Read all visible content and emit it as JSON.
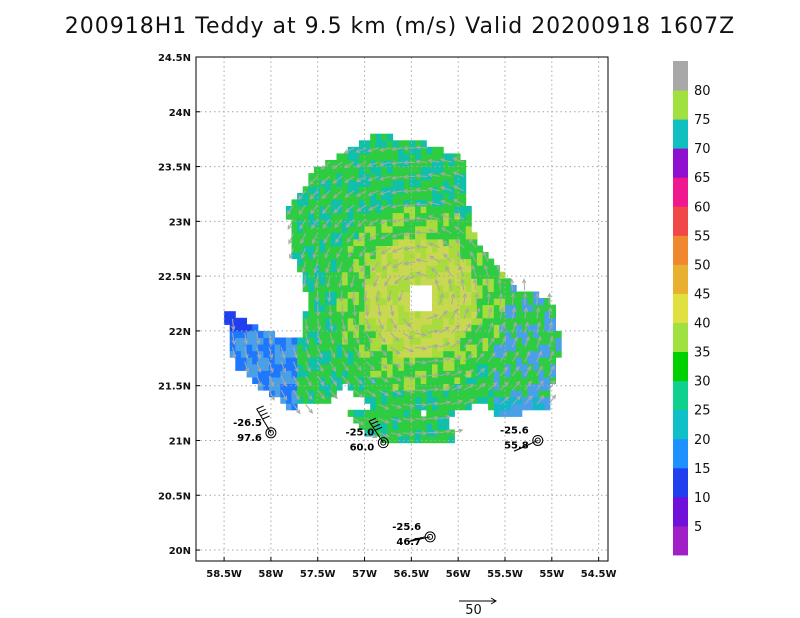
{
  "title": "200918H1 Teddy at 9.5 km (m/s) Valid 20200918 1607Z",
  "chart_data": {
    "type": "heatmap",
    "title": "200918H1 Teddy at 9.5 km (m/s) Valid 20200918 1607Z",
    "xlim": [
      -58.8,
      -54.4
    ],
    "ylim": [
      19.9,
      24.5
    ],
    "x_ticks": [
      {
        "value": -58.5,
        "label": "58.5W"
      },
      {
        "value": -58.0,
        "label": "58W"
      },
      {
        "value": -57.5,
        "label": "57.5W"
      },
      {
        "value": -57.0,
        "label": "57W"
      },
      {
        "value": -56.5,
        "label": "56.5W"
      },
      {
        "value": -56.0,
        "label": "56W"
      },
      {
        "value": -55.5,
        "label": "55.5W"
      },
      {
        "value": -55.0,
        "label": "55W"
      },
      {
        "value": -54.5,
        "label": "54.5W"
      }
    ],
    "y_ticks": [
      {
        "value": 20.0,
        "label": "20N"
      },
      {
        "value": 20.5,
        "label": "20.5N"
      },
      {
        "value": 21.0,
        "label": "21N"
      },
      {
        "value": 21.5,
        "label": "21.5N"
      },
      {
        "value": 22.0,
        "label": "22N"
      },
      {
        "value": 22.5,
        "label": "22.5N"
      },
      {
        "value": 23.0,
        "label": "23N"
      },
      {
        "value": 23.5,
        "label": "23.5N"
      },
      {
        "value": 24.0,
        "label": "24N"
      },
      {
        "value": 24.5,
        "label": "24.5N"
      }
    ],
    "grid": true,
    "storm_center": {
      "lon": -56.4,
      "lat": 22.3
    },
    "colorbar": {
      "labels": [
        "5",
        "10",
        "15",
        "20",
        "25",
        "30",
        "35",
        "40",
        "45",
        "50",
        "55",
        "60",
        "65",
        "70",
        "75",
        "80"
      ],
      "colors": [
        "#a020c8",
        "#7010d8",
        "#2040f0",
        "#1e90ff",
        "#10c0c8",
        "#10d090",
        "#00d000",
        "#a0e040",
        "#e0e040",
        "#e8b030",
        "#f08830",
        "#f04848",
        "#f01890",
        "#9010d0",
        "#10c0c0",
        "#a0e040",
        "#a8a8a8"
      ]
    },
    "dropsondes": [
      {
        "lon": -58.0,
        "lat": 21.07,
        "temp_label": "-26.5",
        "value_label": "97.6"
      },
      {
        "lon": -56.8,
        "lat": 20.98,
        "temp_label": "-25.0",
        "value_label": "60.0"
      },
      {
        "lon": -55.15,
        "lat": 21.0,
        "temp_label": "-25.6",
        "value_label": "55.8"
      },
      {
        "lon": -56.3,
        "lat": 20.12,
        "temp_label": "-25.6",
        "value_label": "46.7"
      }
    ],
    "reference_vector": {
      "label": "50"
    }
  },
  "colors": {
    "gridline": "#a8a8a8",
    "axis": "#000000",
    "vector": "#a8a8a8"
  }
}
